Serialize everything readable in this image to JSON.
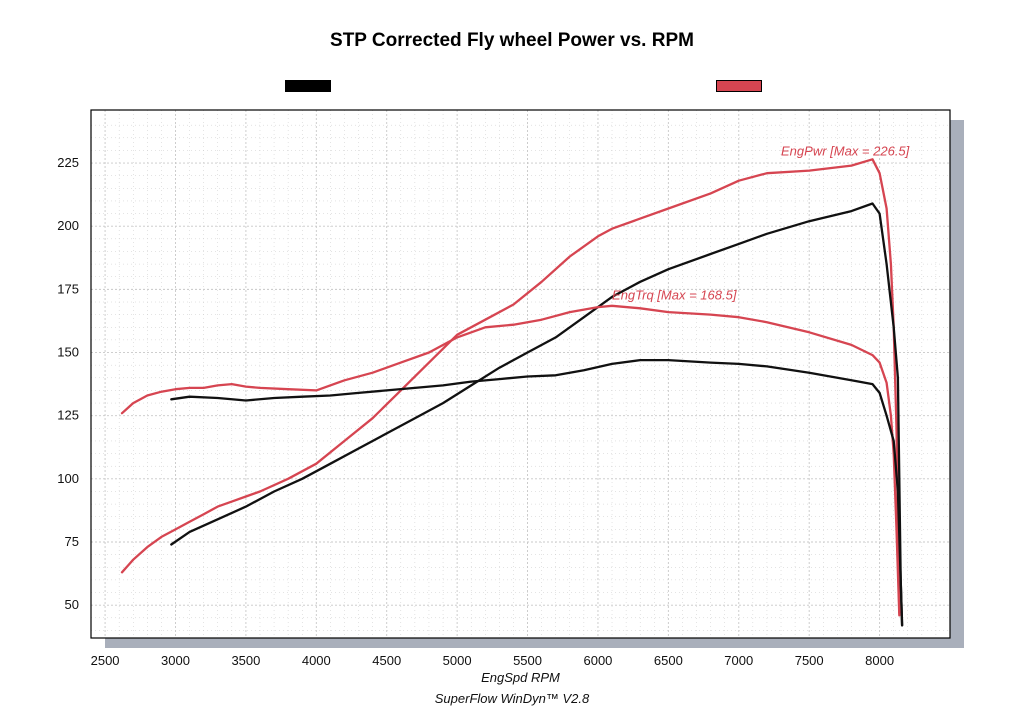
{
  "title": "STP Corrected Fly wheel Power vs. RPM",
  "footer": "SuperFlow WinDyn™ V2.8",
  "colors": {
    "red": "#d64551",
    "black": "#111111",
    "legend_black": "#000000",
    "legend_red": "#d64551",
    "grid": "#c8c8c8",
    "shadow": "#a9afbb"
  },
  "chart_data": {
    "type": "line",
    "title": "STP Corrected Fly wheel Power vs. RPM",
    "xlabel": "EngSpd  RPM",
    "ylabel": "",
    "xlim": [
      2400,
      8500
    ],
    "ylim": [
      37,
      246
    ],
    "x_ticks": [
      2500,
      3000,
      3500,
      4000,
      4500,
      5000,
      5500,
      6000,
      6500,
      7000,
      7500,
      8000
    ],
    "y_ticks": [
      50,
      75,
      100,
      125,
      150,
      175,
      200,
      225
    ],
    "grid": true,
    "series": [
      {
        "name": "",
        "color": "red",
        "x": [
          2620,
          2700,
          2800,
          2900,
          3000,
          3100,
          3200,
          3300,
          3400,
          3500,
          3600,
          3800,
          4000,
          4200,
          4400,
          4600,
          4800,
          5000,
          5200,
          5400,
          5600,
          5800,
          6000,
          6100,
          6300,
          6500,
          6800,
          7000,
          7200,
          7500,
          7800,
          7950,
          8000,
          8050,
          8080,
          8100,
          8120,
          8140
        ],
        "y": [
          63,
          68,
          73,
          77,
          80,
          83,
          86,
          89,
          91,
          93,
          95,
          100,
          106,
          115,
          124,
          135,
          146,
          157,
          163,
          169,
          178,
          188,
          196,
          199,
          203,
          207,
          213,
          218,
          221,
          222,
          224,
          226.5,
          221,
          207,
          185,
          160,
          120,
          47
        ]
      },
      {
        "name": "",
        "color": "black",
        "x": [
          2970,
          3100,
          3300,
          3500,
          3700,
          3900,
          4100,
          4300,
          4500,
          4700,
          4900,
          5100,
          5300,
          5500,
          5700,
          5900,
          6100,
          6300,
          6500,
          6800,
          7000,
          7200,
          7500,
          7800,
          7950,
          8000,
          8050,
          8100,
          8130,
          8150,
          8160
        ],
        "y": [
          74,
          79,
          84,
          89,
          95,
          100,
          106,
          112,
          118,
          124,
          130,
          137,
          144,
          150,
          156,
          164,
          172,
          178,
          183,
          189,
          193,
          197,
          202,
          206,
          209,
          205,
          185,
          160,
          140,
          60,
          42
        ]
      },
      {
        "name": "",
        "color": "red",
        "x": [
          2620,
          2700,
          2800,
          2900,
          3000,
          3100,
          3200,
          3300,
          3400,
          3500,
          3600,
          3800,
          4000,
          4200,
          4400,
          4600,
          4800,
          5000,
          5200,
          5400,
          5600,
          5800,
          6000,
          6100,
          6300,
          6500,
          6800,
          7000,
          7200,
          7500,
          7800,
          7950,
          8000,
          8050,
          8080,
          8100,
          8120,
          8140
        ],
        "y": [
          126,
          130,
          133,
          134.5,
          135.5,
          136,
          136,
          137,
          137.5,
          136.5,
          136,
          135.5,
          135,
          139,
          142,
          146,
          150,
          156,
          160,
          161,
          163,
          166,
          168,
          168.5,
          167.5,
          166,
          165,
          164,
          162,
          158,
          153,
          149,
          146,
          138,
          125,
          110,
          80,
          46
        ]
      },
      {
        "name": "",
        "color": "black",
        "x": [
          2970,
          3100,
          3300,
          3500,
          3700,
          3900,
          4100,
          4300,
          4500,
          4700,
          4900,
          5100,
          5300,
          5500,
          5700,
          5900,
          6100,
          6300,
          6500,
          6800,
          7000,
          7200,
          7500,
          7800,
          7950,
          8000,
          8050,
          8100,
          8130,
          8150,
          8160
        ],
        "y": [
          131.5,
          132.5,
          132,
          131,
          132,
          132.5,
          133,
          134,
          135,
          136,
          137,
          138.5,
          139.5,
          140.5,
          141,
          143,
          145.5,
          147,
          147,
          146,
          145.5,
          144.5,
          142,
          139,
          137.5,
          134,
          125,
          115,
          95,
          60,
          42
        ]
      }
    ],
    "annotations": [
      {
        "text": "EngPwr [Max = 226.5]",
        "x": 7300,
        "y": 228,
        "color": "red"
      },
      {
        "text": "EngTrq [Max = 168.5]",
        "x": 6100,
        "y": 171,
        "color": "red"
      }
    ]
  }
}
